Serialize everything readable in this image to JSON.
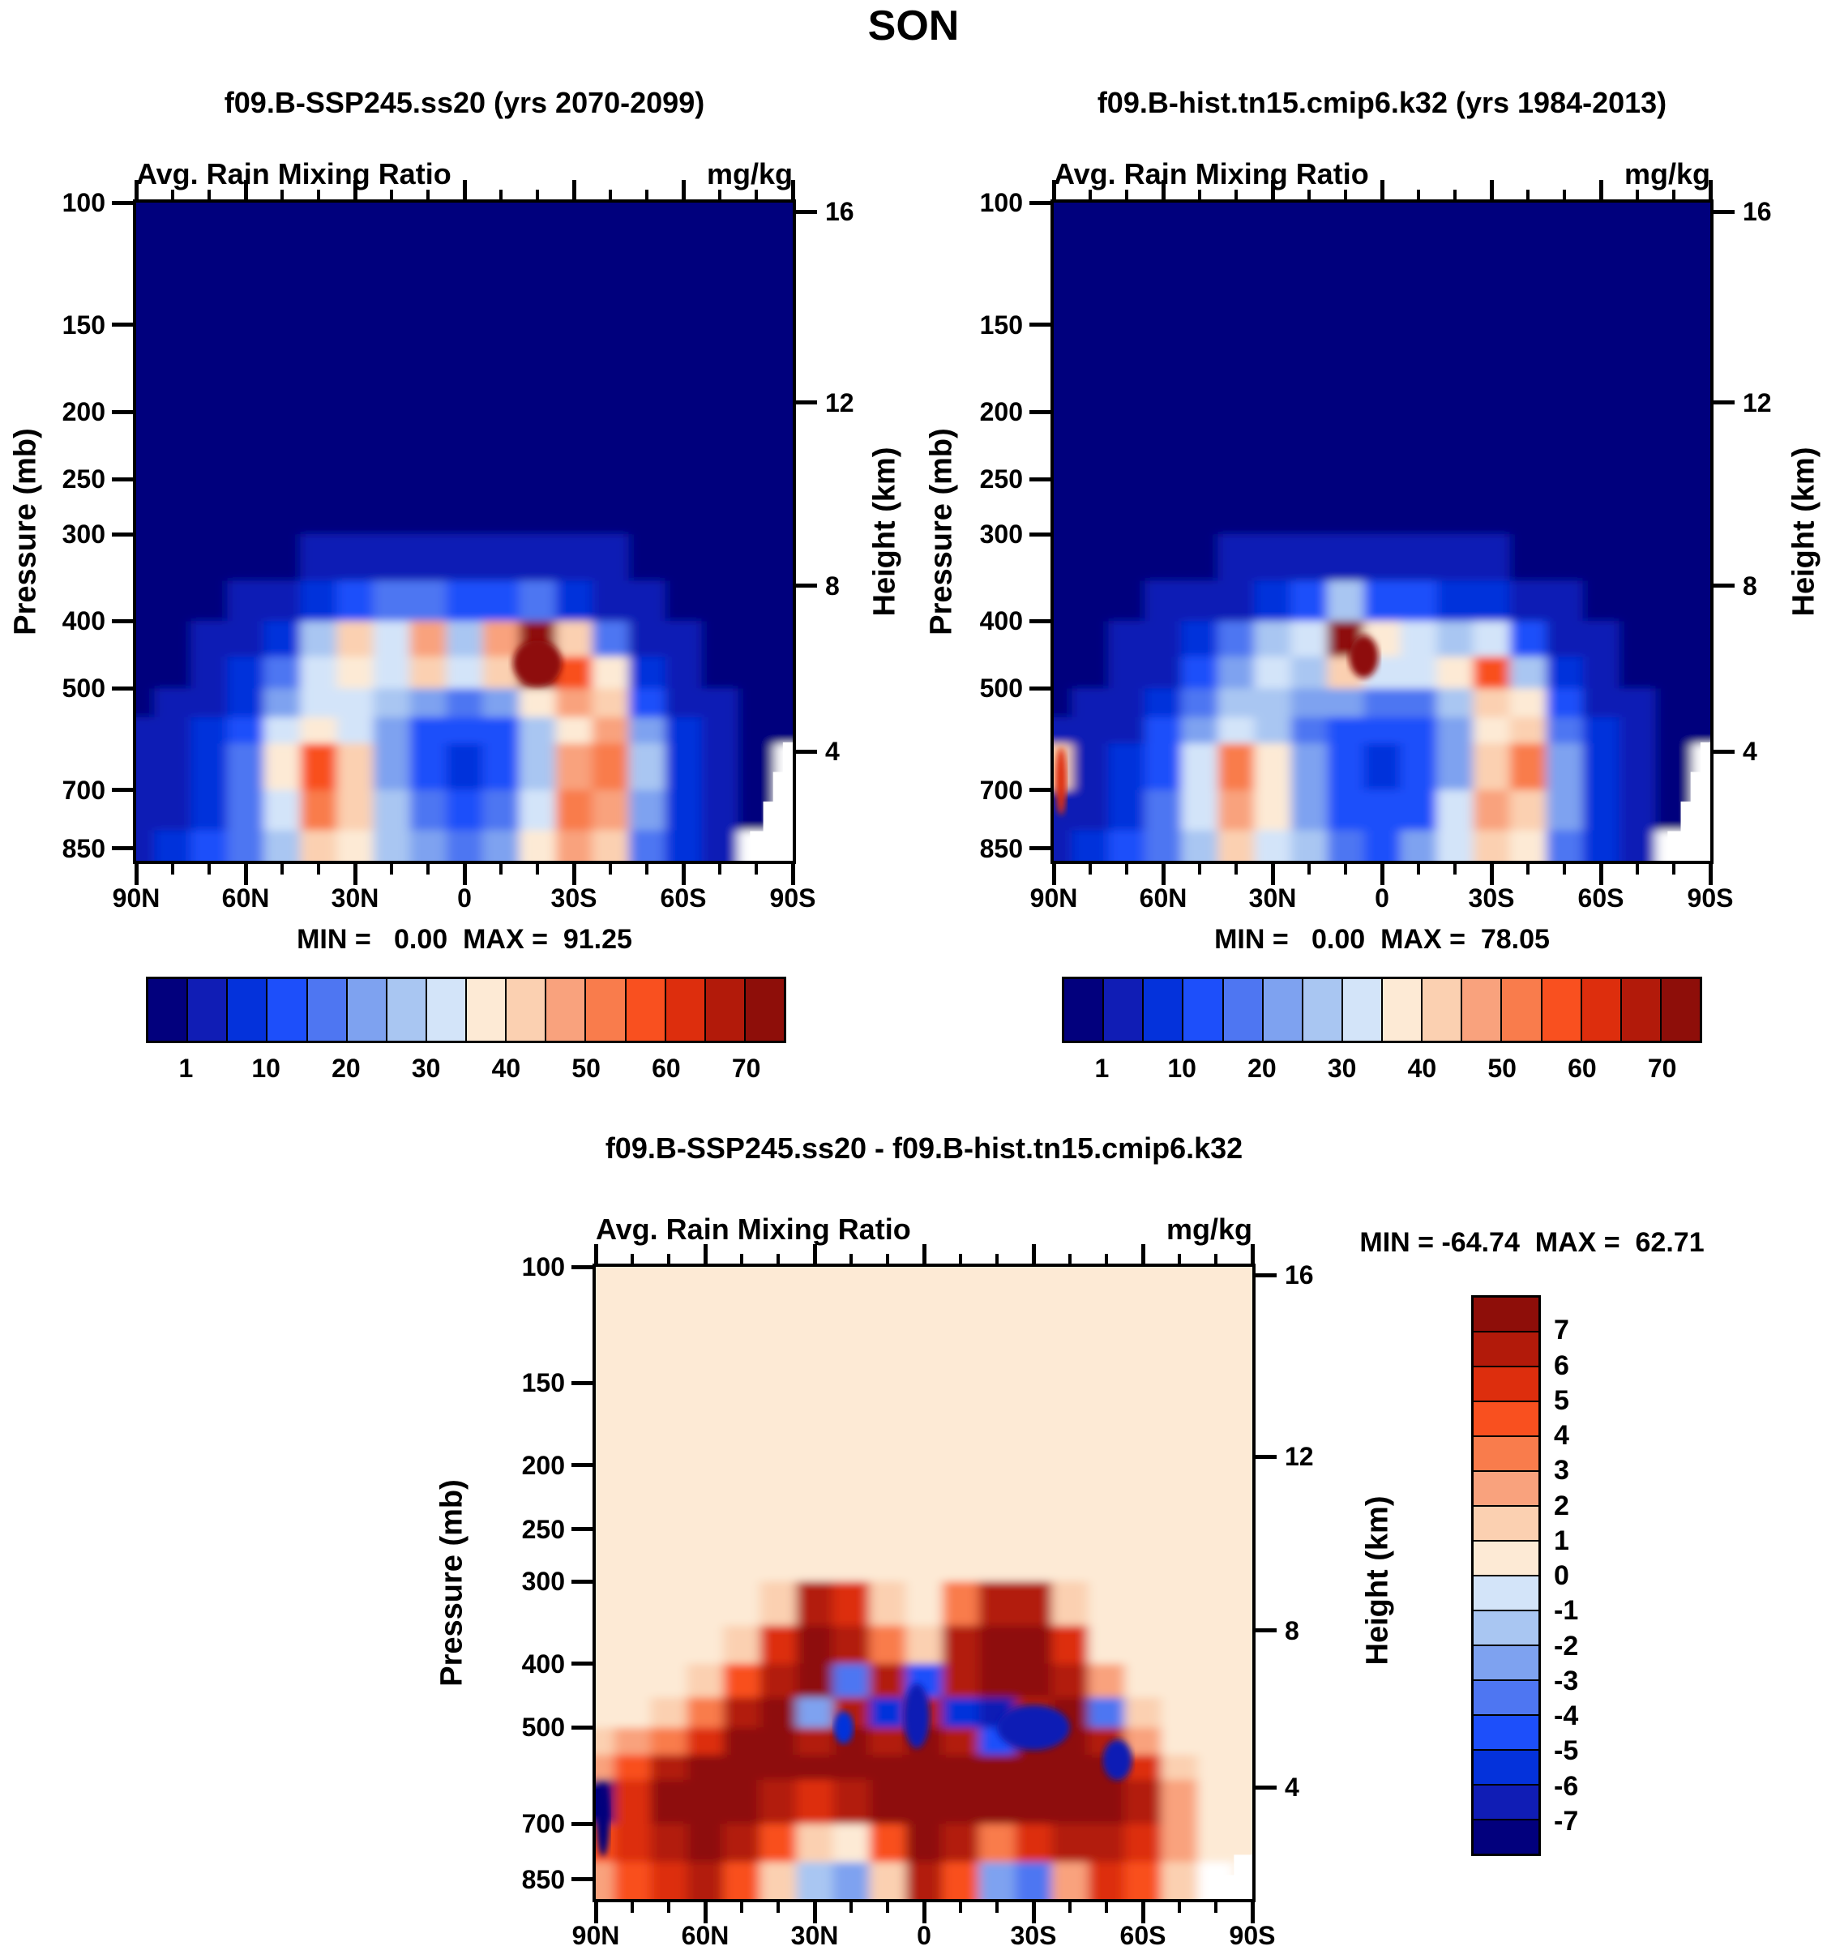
{
  "title": "SON",
  "labels": {
    "variable": "Avg. Rain Mixing Ratio",
    "units": "mg/kg",
    "min_prefix": "MIN =",
    "max_prefix": "MAX =",
    "pressure_axis": "Pressure (mb)",
    "height_axis": "Height (km)"
  },
  "panels": [
    {
      "id": "ssp245",
      "title": "f09.B-SSP245.ss20 (yrs 2070-2099)",
      "min": "0.00",
      "max": "91.25"
    },
    {
      "id": "hist",
      "title": "f09.B-hist.tn15.cmip6.k32 (yrs 1984-2013)",
      "min": "0.00",
      "max": "78.05"
    },
    {
      "id": "diff",
      "title": "f09.B-SSP245.ss20 - f09.B-hist.tn15.cmip6.k32",
      "min": "-64.74",
      "max": "62.71"
    }
  ],
  "chart_data": {
    "type": "heatmap",
    "season": "SON",
    "variable": "Avg. Rain Mixing Ratio",
    "units": "mg/kg",
    "x_axis": {
      "tick_labels": [
        "90N",
        "60N",
        "30N",
        "0",
        "30S",
        "60S",
        "90S"
      ],
      "major_step_deg": 30,
      "minor_step_deg": 10,
      "range_deg": [
        90,
        -90
      ]
    },
    "y_left": {
      "label": "Pressure (mb)",
      "scale": "log",
      "ticks": [
        100,
        150,
        200,
        250,
        300,
        400,
        500,
        700,
        850
      ]
    },
    "y_right": {
      "label": "Height (km)",
      "ticks": [
        16,
        12,
        8,
        4
      ],
      "tick_pressures_mb": [
        103,
        194,
        356,
        616
      ]
    },
    "palette": [
      "#02007D",
      "#101DB5",
      "#0432DB",
      "#1D4FFA",
      "#4E76F2",
      "#7EA2F0",
      "#A9C6F2",
      "#D3E4F9",
      "#FDEAD5",
      "#FBD0B1",
      "#F9A27D",
      "#F97C4C",
      "#F9501F",
      "#DD2E0D",
      "#B21A0A",
      "#8E0E09"
    ],
    "mixing_ratio_levels": [
      1,
      5,
      10,
      15,
      20,
      25,
      30,
      35,
      40,
      45,
      50,
      55,
      60,
      65,
      70
    ],
    "colorbar_shown_labels": [
      "1",
      "10",
      "20",
      "30",
      "40",
      "50",
      "60",
      "70"
    ],
    "diff_levels": [
      -7,
      -6,
      -5,
      -4,
      -3,
      -2,
      -1,
      0,
      1,
      2,
      3,
      4,
      5,
      6,
      7
    ],
    "diff_colorbar_labels": [
      "7",
      "6",
      "5",
      "4",
      "3",
      "2",
      "1",
      "0",
      "-1",
      "-2",
      "-3",
      "-4",
      "-5",
      "-6",
      "-7"
    ],
    "lat_columns_deg": [
      90,
      80,
      70,
      60,
      50,
      40,
      30,
      20,
      10,
      0,
      -10,
      -20,
      -30,
      -40,
      -50,
      -60,
      -70,
      -80,
      -90
    ],
    "pressure_row_bounds_mb": [
      100,
      150,
      200,
      250,
      300,
      350,
      400,
      450,
      500,
      550,
      600,
      700,
      800,
      999
    ],
    "panels": [
      {
        "id": "ssp245",
        "name": "f09.B-SSP245.ss20",
        "years": "2070-2099",
        "min": 0.0,
        "max": 91.25,
        "values": [
          [
            0,
            0,
            0,
            0,
            0,
            0,
            0,
            0,
            0,
            0,
            0,
            0,
            0,
            0,
            0,
            0,
            0,
            0,
            0
          ],
          [
            0,
            0,
            0,
            0,
            0,
            0,
            0,
            0,
            0,
            0,
            0,
            0,
            0,
            0,
            0,
            0,
            0,
            0,
            0
          ],
          [
            0,
            0,
            0,
            0,
            0,
            0,
            0,
            0,
            0,
            0,
            0,
            0,
            0,
            0,
            0,
            0,
            0,
            0,
            0
          ],
          [
            0,
            0,
            0,
            0,
            0,
            0,
            0,
            0,
            0,
            0,
            0,
            0,
            0,
            0,
            0,
            0,
            0,
            0,
            0
          ],
          [
            0,
            0,
            0,
            0,
            0,
            2,
            3,
            4,
            3,
            2,
            2,
            3,
            2,
            1,
            0,
            0,
            0,
            0,
            0
          ],
          [
            0,
            0,
            0,
            1,
            2,
            5,
            12,
            18,
            15,
            10,
            12,
            15,
            8,
            3,
            1,
            0,
            0,
            0,
            0
          ],
          [
            0,
            0,
            1,
            2,
            8,
            25,
            42,
            30,
            48,
            28,
            45,
            75,
            40,
            15,
            3,
            1,
            0,
            0,
            0
          ],
          [
            0,
            0,
            2,
            5,
            15,
            30,
            38,
            32,
            40,
            30,
            42,
            88,
            55,
            35,
            8,
            2,
            0,
            0,
            0
          ],
          [
            0,
            1,
            3,
            8,
            22,
            32,
            30,
            25,
            22,
            18,
            22,
            35,
            45,
            40,
            14,
            4,
            1,
            0,
            0
          ],
          [
            1,
            2,
            5,
            12,
            30,
            38,
            30,
            20,
            14,
            11,
            14,
            25,
            38,
            45,
            20,
            6,
            2,
            0,
            0
          ],
          [
            1,
            3,
            7,
            15,
            38,
            55,
            40,
            22,
            13,
            9,
            12,
            28,
            48,
            52,
            25,
            8,
            2,
            0,
            null
          ],
          [
            2,
            4,
            9,
            17,
            32,
            50,
            40,
            26,
            16,
            11,
            16,
            32,
            50,
            46,
            22,
            8,
            2,
            0,
            null
          ],
          [
            2,
            5,
            11,
            19,
            28,
            42,
            36,
            28,
            20,
            15,
            22,
            36,
            46,
            40,
            18,
            6,
            1,
            null,
            null
          ]
        ],
        "hotspots": [
          {
            "lat": -20,
            "p": 460,
            "rx": 30,
            "ry": 28,
            "ci": 15
          }
        ],
        "missing_notch": [
          [
            1,
            0.82
          ],
          [
            0.985,
            0.82
          ],
          [
            0.985,
            0.865
          ],
          [
            0.97,
            0.865
          ],
          [
            0.97,
            0.91
          ],
          [
            0.955,
            0.91
          ],
          [
            0.955,
            0.955
          ],
          [
            0.935,
            0.955
          ],
          [
            0.935,
            1
          ],
          [
            1,
            1
          ]
        ]
      },
      {
        "id": "hist",
        "name": "f09.B-hist.tn15.cmip6.k32",
        "years": "1984-2013",
        "min": 0.0,
        "max": 78.05,
        "values": [
          [
            0,
            0,
            0,
            0,
            0,
            0,
            0,
            0,
            0,
            0,
            0,
            0,
            0,
            0,
            0,
            0,
            0,
            0,
            0
          ],
          [
            0,
            0,
            0,
            0,
            0,
            0,
            0,
            0,
            0,
            0,
            0,
            0,
            0,
            0,
            0,
            0,
            0,
            0,
            0
          ],
          [
            0,
            0,
            0,
            0,
            0,
            0,
            0,
            0,
            0,
            0,
            0,
            0,
            0,
            0,
            0,
            0,
            0,
            0,
            0
          ],
          [
            0,
            0,
            0,
            0,
            0,
            0,
            0,
            0,
            0,
            0,
            0,
            0,
            0,
            0,
            0,
            0,
            0,
            0,
            0
          ],
          [
            0,
            0,
            0,
            0,
            0,
            1,
            2,
            3,
            3,
            2,
            2,
            2,
            1,
            0,
            0,
            0,
            0,
            0,
            0
          ],
          [
            0,
            0,
            0,
            1,
            1,
            3,
            8,
            12,
            25,
            12,
            10,
            8,
            6,
            3,
            1,
            0,
            0,
            0,
            0
          ],
          [
            0,
            0,
            1,
            2,
            5,
            15,
            28,
            30,
            72,
            35,
            30,
            25,
            30,
            12,
            3,
            1,
            0,
            0,
            0
          ],
          [
            0,
            0,
            1,
            3,
            10,
            22,
            30,
            28,
            42,
            32,
            30,
            38,
            55,
            25,
            6,
            2,
            0,
            0,
            0
          ],
          [
            0,
            1,
            2,
            6,
            16,
            26,
            26,
            22,
            20,
            16,
            16,
            26,
            42,
            38,
            12,
            3,
            1,
            0,
            0
          ],
          [
            1,
            2,
            4,
            10,
            24,
            34,
            28,
            18,
            13,
            10,
            12,
            22,
            36,
            44,
            18,
            5,
            1,
            0,
            0
          ],
          [
            40,
            3,
            6,
            13,
            32,
            50,
            38,
            20,
            12,
            8,
            10,
            24,
            42,
            50,
            23,
            7,
            2,
            0,
            null
          ],
          [
            3,
            4,
            8,
            16,
            30,
            46,
            36,
            23,
            14,
            10,
            14,
            30,
            46,
            44,
            20,
            7,
            2,
            0,
            null
          ],
          [
            2,
            5,
            10,
            17,
            26,
            40,
            33,
            26,
            18,
            13,
            20,
            34,
            44,
            38,
            16,
            5,
            1,
            null,
            null
          ]
        ],
        "hotspots": [
          {
            "lat": 5,
            "p": 450,
            "rx": 18,
            "ry": 26,
            "ci": 15
          },
          {
            "lat": 88,
            "p": 680,
            "rx": 7,
            "ry": 42,
            "ci": 13
          }
        ],
        "missing_notch": [
          [
            1,
            0.82
          ],
          [
            0.985,
            0.82
          ],
          [
            0.985,
            0.865
          ],
          [
            0.97,
            0.865
          ],
          [
            0.97,
            0.91
          ],
          [
            0.955,
            0.91
          ],
          [
            0.955,
            0.955
          ],
          [
            0.935,
            0.955
          ],
          [
            0.935,
            1
          ],
          [
            1,
            1
          ]
        ]
      },
      {
        "id": "diff",
        "name": "difference",
        "min": -64.74,
        "max": 62.71,
        "values": [
          [
            0.5,
            0.5,
            0.5,
            0.5,
            0.5,
            0.5,
            0.5,
            0.5,
            0.5,
            0.5,
            0.5,
            0.5,
            0.5,
            0.5,
            0.5,
            0.5,
            0.5,
            0.5,
            0.5
          ],
          [
            0.5,
            0.5,
            0.5,
            0.5,
            0.5,
            0.5,
            0.5,
            0.5,
            0.5,
            0.5,
            0.5,
            0.5,
            0.5,
            0.5,
            0.5,
            0.5,
            0.5,
            0.5,
            0.5
          ],
          [
            0.5,
            0.5,
            0.5,
            0.5,
            0.5,
            0.5,
            0.5,
            0.5,
            0.5,
            0.5,
            0.5,
            0.5,
            0.5,
            0.5,
            0.5,
            0.5,
            0.5,
            0.5,
            0.5
          ],
          [
            0.5,
            0.5,
            0.5,
            0.5,
            0.5,
            0.5,
            0.5,
            0.5,
            0.5,
            0.5,
            0.5,
            0.5,
            0.5,
            0.5,
            0.5,
            0.5,
            0.5,
            0.5,
            0.5
          ],
          [
            0.5,
            0.5,
            0.5,
            0.5,
            0.5,
            1.5,
            6.5,
            5.5,
            1.5,
            0.5,
            3.5,
            6.5,
            6.5,
            1.5,
            0.5,
            0.5,
            0.5,
            0.5,
            0.5
          ],
          [
            0.5,
            0.5,
            0.5,
            0.5,
            1.5,
            5.5,
            8,
            6.5,
            3.5,
            1.5,
            6.5,
            8,
            8,
            5.5,
            0.5,
            0.5,
            0.5,
            0.5,
            0.5
          ],
          [
            0.5,
            0.5,
            0.5,
            1.5,
            4.5,
            6.5,
            8,
            -3.5,
            6.5,
            -4.5,
            6.5,
            8,
            8,
            6.5,
            2.5,
            0.5,
            0.5,
            0.5,
            0.5
          ],
          [
            0.5,
            0.5,
            1.5,
            3.5,
            6.5,
            8,
            -2.5,
            6.5,
            -5.5,
            6.5,
            -5.5,
            -6.5,
            6.5,
            8,
            -3.5,
            1.5,
            0.5,
            0.5,
            0.5
          ],
          [
            1.5,
            2.5,
            3.5,
            5.5,
            8,
            8,
            6.5,
            8,
            6.5,
            8,
            6.5,
            -4.5,
            8,
            8,
            6.5,
            2.5,
            0.5,
            0.5,
            0.5
          ],
          [
            2.5,
            4.5,
            6.5,
            8,
            8,
            8,
            8,
            8,
            8,
            8,
            8,
            8,
            8,
            8,
            8,
            5.5,
            1.5,
            0.5,
            0.5
          ],
          [
            -8,
            5.5,
            8,
            8,
            8,
            6.5,
            5.5,
            6.5,
            8,
            8,
            8,
            8,
            8,
            8,
            8,
            6.5,
            2.5,
            0.5,
            0.5
          ],
          [
            4.5,
            5.5,
            6.5,
            8,
            6.5,
            4.5,
            1.5,
            0.5,
            4.5,
            8,
            6.5,
            3.5,
            5.5,
            6.5,
            6.5,
            5.5,
            2.5,
            0.5,
            0.5
          ],
          [
            2.5,
            4.5,
            5.5,
            6.5,
            4.5,
            1.5,
            -1.5,
            -2.5,
            1.5,
            6.5,
            4.5,
            -2.5,
            -3.5,
            2.5,
            5.5,
            4.5,
            1.5,
            null,
            0.5
          ]
        ],
        "hotspots": [
          {
            "lat": 88,
            "p": 690,
            "rx": 8,
            "ry": 45,
            "ci": 0
          },
          {
            "lat": 2,
            "p": 480,
            "rx": 16,
            "ry": 40,
            "ci": 1
          },
          {
            "lat": -30,
            "p": 500,
            "rx": 45,
            "ry": 28,
            "ci": 1
          },
          {
            "lat": -53,
            "p": 560,
            "rx": 18,
            "ry": 25,
            "ci": 1
          },
          {
            "lat": 22,
            "p": 500,
            "rx": 12,
            "ry": 20,
            "ci": 2
          }
        ],
        "missing_notch": [
          [
            1,
            0.93
          ],
          [
            0.972,
            0.93
          ],
          [
            0.972,
            0.962
          ],
          [
            0.948,
            0.962
          ],
          [
            0.948,
            1
          ],
          [
            1,
            1
          ]
        ]
      }
    ]
  }
}
